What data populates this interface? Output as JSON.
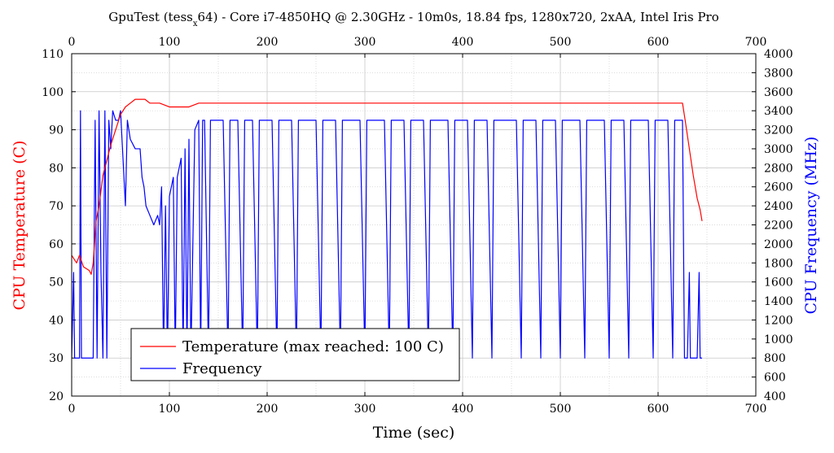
{
  "chart_data": {
    "type": "line",
    "title": "GpuTest (tess_x64) - Core i7-4850HQ @ 2.30GHz - 10m0s, 18.84 fps, 1280x720, 2xAA, Intel Iris Pro",
    "title_parts": {
      "before": "GpuTest (tess",
      "subscript": "x",
      "after": "64) - Core i7-4850HQ @ 2.30GHz - 10m0s, 18.84 fps, 1280x720, 2xAA, Intel Iris Pro"
    },
    "xlabel": "Time (sec)",
    "ylabel_left": "CPU Temperature (C)",
    "ylabel_right": "CPU Frequency (MHz)",
    "xlim": [
      0,
      700
    ],
    "ylim_left": [
      20,
      110
    ],
    "ylim_right": [
      400,
      4000
    ],
    "x_ticks": [
      "0",
      "100",
      "200",
      "300",
      "400",
      "500",
      "600",
      "700"
    ],
    "y_ticks_left": [
      "20",
      "30",
      "40",
      "50",
      "60",
      "70",
      "80",
      "90",
      "100",
      "110"
    ],
    "y_ticks_right": [
      "400",
      "600",
      "800",
      "1000",
      "1200",
      "1400",
      "1600",
      "1800",
      "2000",
      "2200",
      "2400",
      "2600",
      "2800",
      "3000",
      "3200",
      "3400",
      "3600",
      "3800",
      "4000"
    ],
    "grid": true,
    "legend_position": "bottom-left",
    "series": [
      {
        "name": "Temperature (max reached: 100 C)",
        "axis": "left",
        "color": "#ff0000",
        "points": [
          [
            0,
            57
          ],
          [
            5,
            55
          ],
          [
            8,
            57
          ],
          [
            12,
            54
          ],
          [
            18,
            53
          ],
          [
            20,
            52
          ],
          [
            22,
            55
          ],
          [
            25,
            66
          ],
          [
            28,
            70
          ],
          [
            32,
            78
          ],
          [
            36,
            82
          ],
          [
            40,
            86
          ],
          [
            45,
            90
          ],
          [
            50,
            94
          ],
          [
            55,
            96
          ],
          [
            60,
            97
          ],
          [
            65,
            98
          ],
          [
            70,
            98
          ],
          [
            75,
            98
          ],
          [
            80,
            97
          ],
          [
            90,
            97
          ],
          [
            100,
            96
          ],
          [
            110,
            96
          ],
          [
            120,
            96
          ],
          [
            130,
            97
          ],
          [
            140,
            97
          ],
          [
            160,
            97
          ],
          [
            200,
            97
          ],
          [
            250,
            97
          ],
          [
            300,
            97
          ],
          [
            350,
            97
          ],
          [
            400,
            97
          ],
          [
            450,
            97
          ],
          [
            500,
            97
          ],
          [
            550,
            97
          ],
          [
            600,
            97
          ],
          [
            625,
            97
          ],
          [
            628,
            92
          ],
          [
            632,
            85
          ],
          [
            636,
            78
          ],
          [
            640,
            72
          ],
          [
            643,
            69
          ],
          [
            645,
            66
          ]
        ]
      },
      {
        "name": "Frequency",
        "axis": "right",
        "color": "#0000ff",
        "points": [
          [
            0,
            800
          ],
          [
            2,
            1700
          ],
          [
            3,
            800
          ],
          [
            8,
            800
          ],
          [
            9,
            3400
          ],
          [
            10,
            800
          ],
          [
            20,
            800
          ],
          [
            22,
            800
          ],
          [
            24,
            3300
          ],
          [
            26,
            800
          ],
          [
            28,
            3400
          ],
          [
            30,
            1700
          ],
          [
            32,
            800
          ],
          [
            34,
            3400
          ],
          [
            36,
            800
          ],
          [
            38,
            3300
          ],
          [
            40,
            3000
          ],
          [
            42,
            3400
          ],
          [
            45,
            3300
          ],
          [
            48,
            3300
          ],
          [
            50,
            3400
          ],
          [
            52,
            3000
          ],
          [
            55,
            2400
          ],
          [
            57,
            3300
          ],
          [
            60,
            3100
          ],
          [
            65,
            3000
          ],
          [
            70,
            3000
          ],
          [
            72,
            2700
          ],
          [
            74,
            2600
          ],
          [
            76,
            2400
          ],
          [
            80,
            2300
          ],
          [
            84,
            2200
          ],
          [
            88,
            2300
          ],
          [
            90,
            2200
          ],
          [
            92,
            2600
          ],
          [
            94,
            800
          ],
          [
            96,
            2400
          ],
          [
            98,
            800
          ],
          [
            100,
            2500
          ],
          [
            102,
            2600
          ],
          [
            104,
            2700
          ],
          [
            106,
            800
          ],
          [
            108,
            2700
          ],
          [
            110,
            2800
          ],
          [
            112,
            2900
          ],
          [
            114,
            800
          ],
          [
            116,
            3000
          ],
          [
            118,
            800
          ],
          [
            120,
            3100
          ],
          [
            122,
            800
          ],
          [
            126,
            3200
          ],
          [
            130,
            3300
          ],
          [
            132,
            800
          ],
          [
            134,
            3300
          ],
          [
            136,
            3300
          ],
          [
            140,
            800
          ],
          [
            142,
            3300
          ],
          [
            145,
            3300
          ],
          [
            150,
            3300
          ],
          [
            155,
            3300
          ],
          [
            160,
            800
          ],
          [
            162,
            3300
          ],
          [
            170,
            3300
          ],
          [
            175,
            800
          ],
          [
            177,
            3300
          ],
          [
            185,
            3300
          ],
          [
            190,
            800
          ],
          [
            192,
            3300
          ],
          [
            205,
            3300
          ],
          [
            210,
            800
          ],
          [
            212,
            3300
          ],
          [
            225,
            3300
          ],
          [
            230,
            800
          ],
          [
            232,
            3300
          ],
          [
            250,
            3300
          ],
          [
            255,
            800
          ],
          [
            257,
            3300
          ],
          [
            270,
            3300
          ],
          [
            275,
            800
          ],
          [
            277,
            3300
          ],
          [
            295,
            3300
          ],
          [
            300,
            800
          ],
          [
            302,
            3300
          ],
          [
            320,
            3300
          ],
          [
            325,
            800
          ],
          [
            327,
            3300
          ],
          [
            340,
            3300
          ],
          [
            345,
            800
          ],
          [
            347,
            3300
          ],
          [
            360,
            3300
          ],
          [
            365,
            800
          ],
          [
            367,
            3300
          ],
          [
            385,
            3300
          ],
          [
            390,
            800
          ],
          [
            392,
            3300
          ],
          [
            405,
            3300
          ],
          [
            410,
            800
          ],
          [
            412,
            3300
          ],
          [
            425,
            3300
          ],
          [
            430,
            800
          ],
          [
            432,
            3300
          ],
          [
            455,
            3300
          ],
          [
            460,
            800
          ],
          [
            462,
            3300
          ],
          [
            475,
            3300
          ],
          [
            480,
            800
          ],
          [
            482,
            3300
          ],
          [
            495,
            3300
          ],
          [
            500,
            800
          ],
          [
            502,
            3300
          ],
          [
            520,
            3300
          ],
          [
            525,
            800
          ],
          [
            527,
            3300
          ],
          [
            545,
            3300
          ],
          [
            550,
            800
          ],
          [
            552,
            3300
          ],
          [
            565,
            3300
          ],
          [
            570,
            800
          ],
          [
            572,
            3300
          ],
          [
            590,
            3300
          ],
          [
            595,
            800
          ],
          [
            597,
            3300
          ],
          [
            610,
            3300
          ],
          [
            615,
            800
          ],
          [
            617,
            3300
          ],
          [
            625,
            3300
          ],
          [
            627,
            800
          ],
          [
            630,
            800
          ],
          [
            632,
            1700
          ],
          [
            633,
            800
          ],
          [
            640,
            800
          ],
          [
            642,
            1700
          ],
          [
            643,
            800
          ],
          [
            645,
            800
          ]
        ]
      }
    ]
  }
}
